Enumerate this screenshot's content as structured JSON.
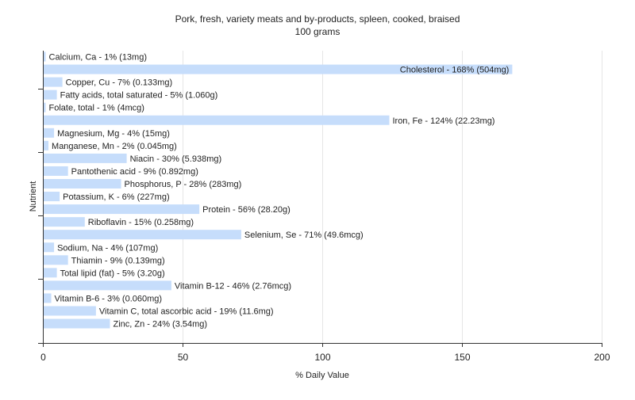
{
  "chart_data": {
    "type": "bar",
    "orientation": "horizontal",
    "title": "Pork, fresh, variety meats and by-products, spleen, cooked, braised",
    "subtitle": "100 grams",
    "xlabel": "% Daily Value",
    "ylabel": "Nutrient",
    "xlim": [
      0,
      200
    ],
    "xticks": [
      0,
      50,
      100,
      150,
      200
    ],
    "grid": true,
    "bar_color": "#c6ddfb",
    "bars": [
      {
        "label": "Calcium, Ca - 1% (13mg)",
        "value": 1
      },
      {
        "label": "Cholesterol - 168% (504mg)",
        "value": 168
      },
      {
        "label": "Copper, Cu - 7% (0.133mg)",
        "value": 7
      },
      {
        "label": "Fatty acids, total saturated - 5% (1.060g)",
        "value": 5
      },
      {
        "label": "Folate, total - 1% (4mcg)",
        "value": 1
      },
      {
        "label": "Iron, Fe - 124% (22.23mg)",
        "value": 124
      },
      {
        "label": "Magnesium, Mg - 4% (15mg)",
        "value": 4
      },
      {
        "label": "Manganese, Mn - 2% (0.045mg)",
        "value": 2
      },
      {
        "label": "Niacin - 30% (5.938mg)",
        "value": 30
      },
      {
        "label": "Pantothenic acid - 9% (0.892mg)",
        "value": 9
      },
      {
        "label": "Phosphorus, P - 28% (283mg)",
        "value": 28
      },
      {
        "label": "Potassium, K - 6% (227mg)",
        "value": 6
      },
      {
        "label": "Protein - 56% (28.20g)",
        "value": 56
      },
      {
        "label": "Riboflavin - 15% (0.258mg)",
        "value": 15
      },
      {
        "label": "Selenium, Se - 71% (49.6mcg)",
        "value": 71
      },
      {
        "label": "Sodium, Na - 4% (107mg)",
        "value": 4
      },
      {
        "label": "Thiamin - 9% (0.139mg)",
        "value": 9
      },
      {
        "label": "Total lipid (fat) - 5% (3.20g)",
        "value": 5
      },
      {
        "label": "Vitamin B-12 - 46% (2.76mcg)",
        "value": 46
      },
      {
        "label": "Vitamin B-6 - 3% (0.060mg)",
        "value": 3
      },
      {
        "label": "Vitamin C, total ascorbic acid - 19% (11.6mg)",
        "value": 19
      },
      {
        "label": "Zinc, Zn - 24% (3.54mg)",
        "value": 24
      }
    ]
  }
}
